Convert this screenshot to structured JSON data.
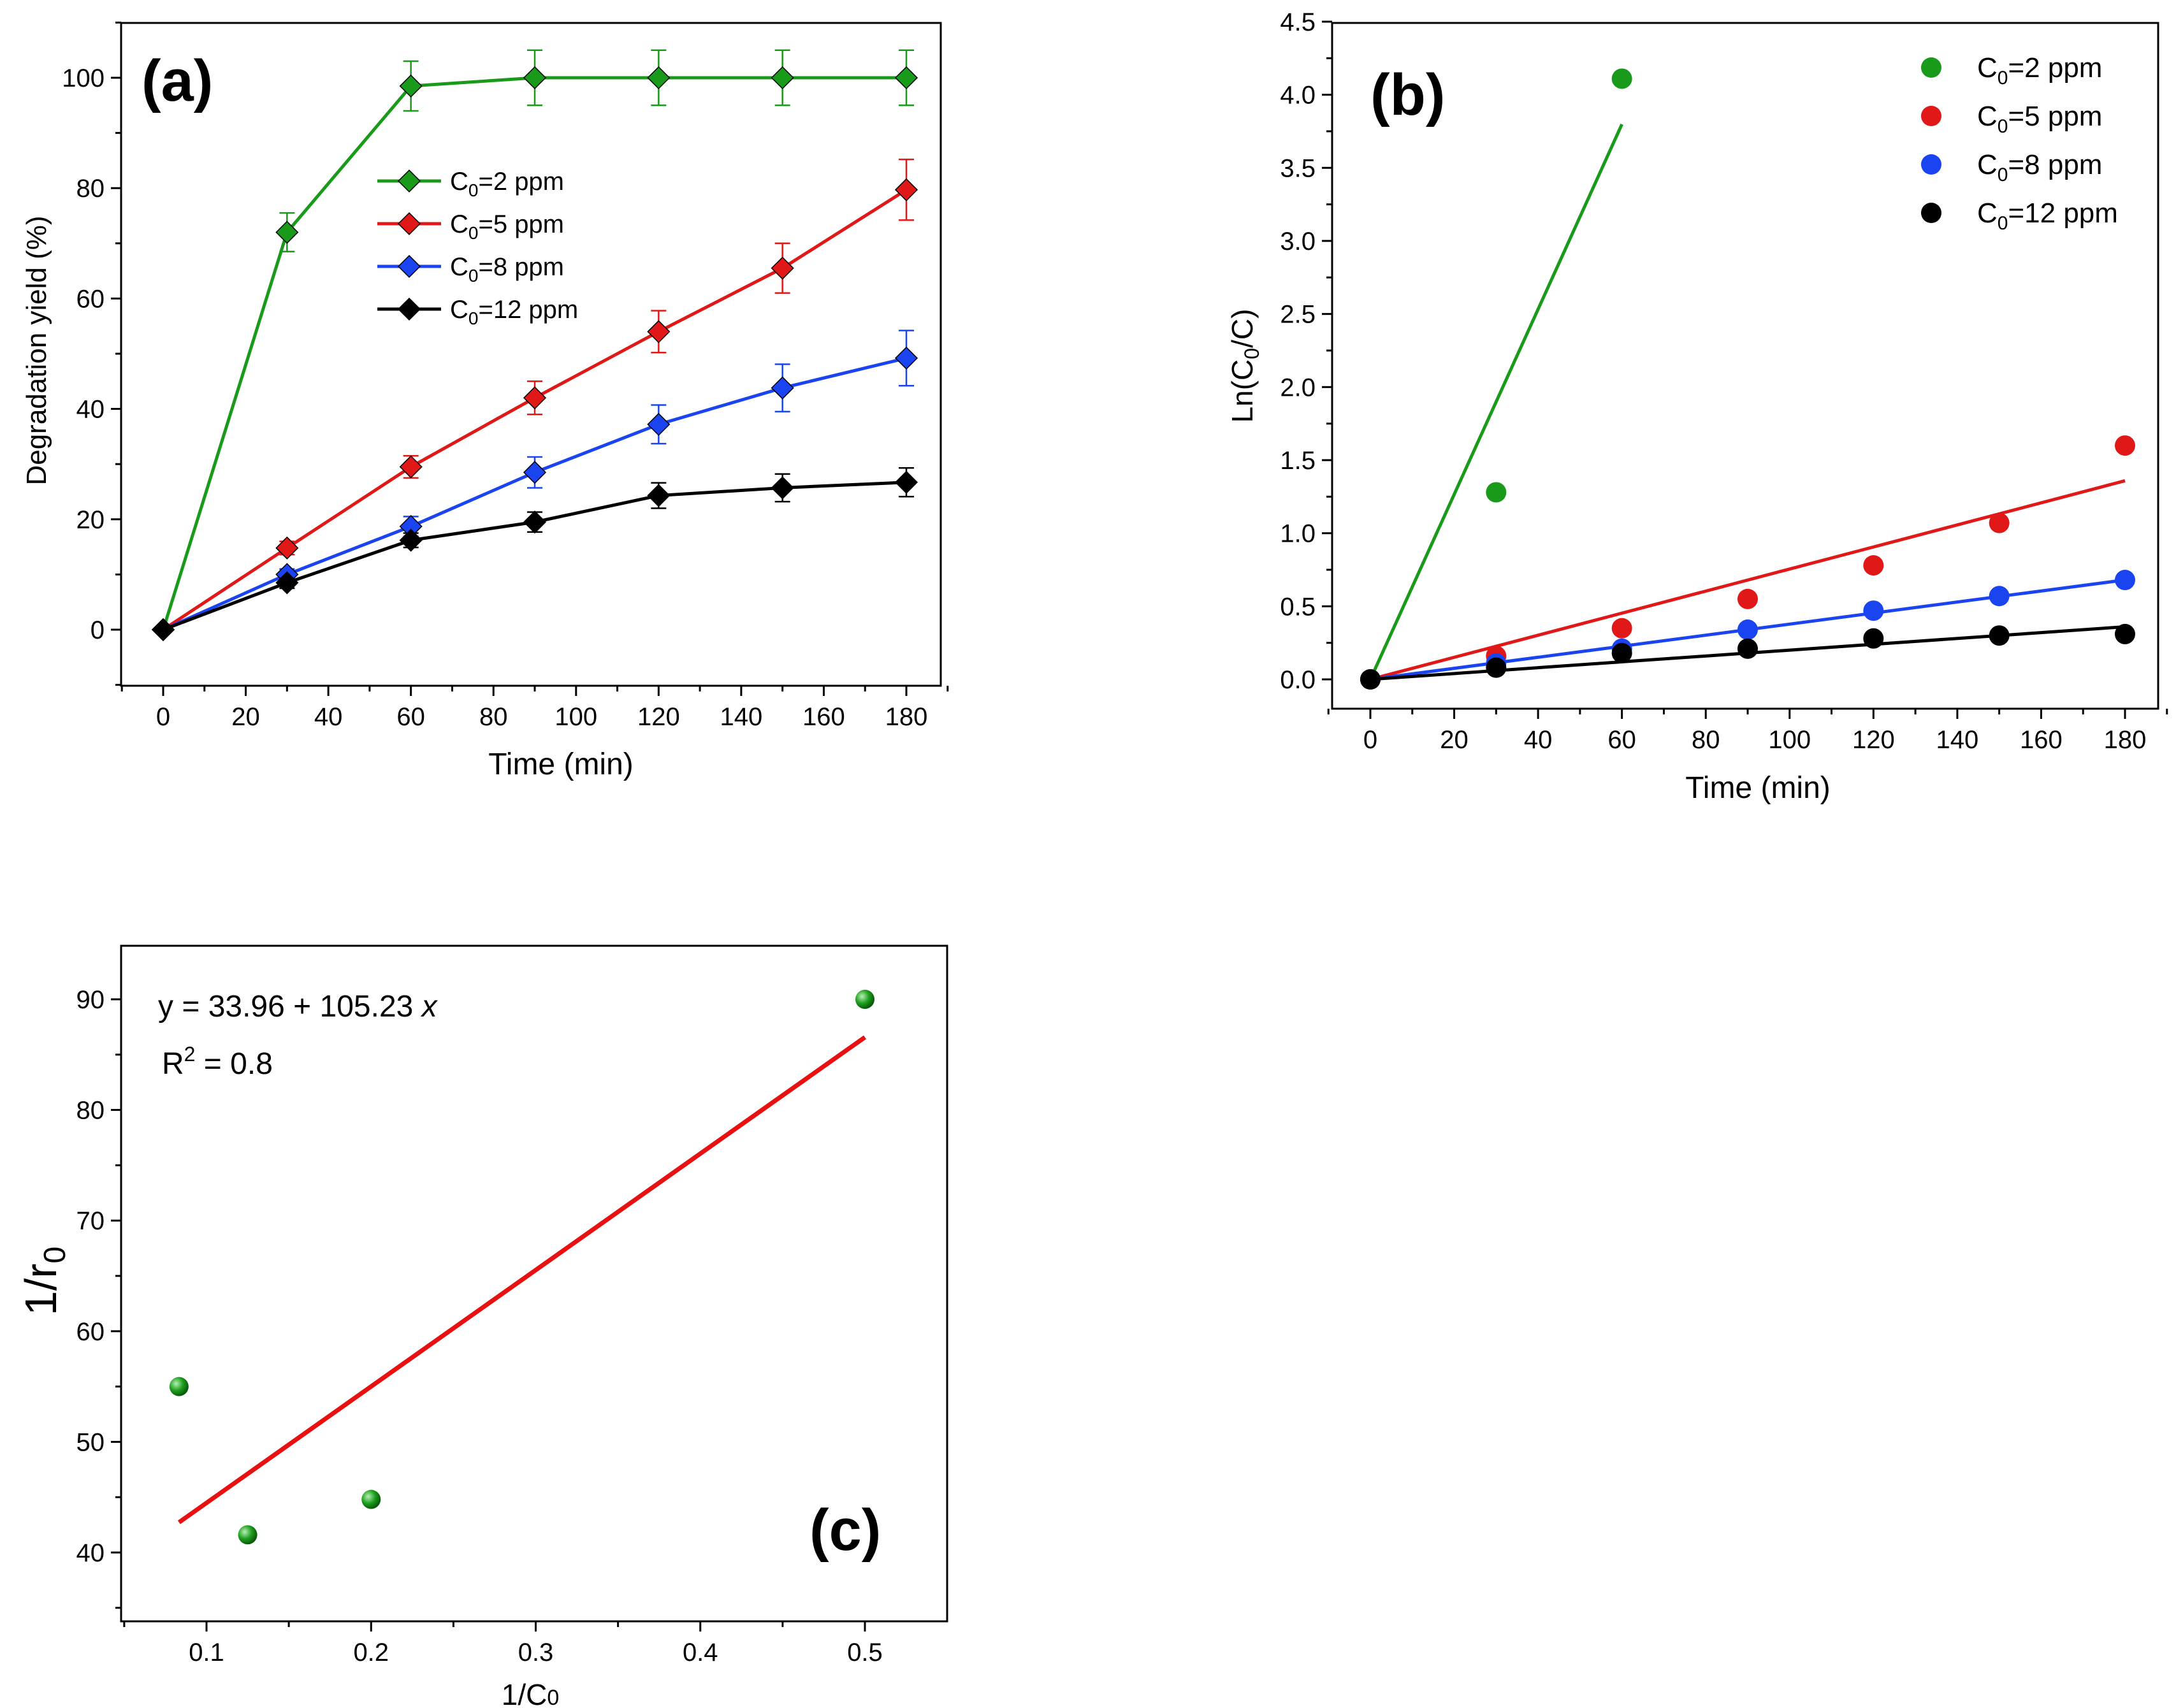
{
  "colors": {
    "green": "#1a9a1a",
    "red": "#e01818",
    "blue": "#1a44f0",
    "black": "#000000",
    "fit_red": "#e81010",
    "point_green": "#22a022"
  },
  "chart_data": [
    {
      "id": "a",
      "type": "line",
      "panel_label": "(a)",
      "xlabel": "Time (min)",
      "ylabel": "Degradation yield (%)",
      "xlim": [
        -10,
        190
      ],
      "ylim": [
        -10,
        110
      ],
      "xticks": [
        "0",
        "20",
        "40",
        "60",
        "80",
        "100",
        "120",
        "140",
        "160",
        "180"
      ],
      "yticks": [
        "0",
        "20",
        "40",
        "60",
        "80",
        "100"
      ],
      "x": [
        0,
        30,
        60,
        90,
        120,
        150,
        180
      ],
      "legend_position": "center-right",
      "series": [
        {
          "name_main": "C",
          "name_sub": "0",
          "name_rest": "=2 ppm",
          "color_key": "green",
          "values": [
            0,
            72,
            98.5,
            100,
            100,
            100,
            100
          ],
          "errors": [
            0,
            3.5,
            4.5,
            5,
            5,
            5,
            5
          ]
        },
        {
          "name_main": "C",
          "name_sub": "0",
          "name_rest": "=5 ppm",
          "color_key": "red",
          "values": [
            0,
            14.8,
            29.5,
            42,
            54,
            65.5,
            79.7
          ],
          "errors": [
            0,
            1.2,
            2,
            3,
            3.8,
            4.5,
            5.5
          ]
        },
        {
          "name_main": "C",
          "name_sub": "0",
          "name_rest": "=8 ppm",
          "color_key": "blue",
          "values": [
            0,
            10,
            18.7,
            28.5,
            37.2,
            43.8,
            49.2
          ],
          "errors": [
            0,
            1,
            1.8,
            2.8,
            3.5,
            4.3,
            5
          ]
        },
        {
          "name_main": "C",
          "name_sub": "0",
          "name_rest": "=12 ppm",
          "color_key": "black",
          "values": [
            0,
            8.5,
            16.2,
            19.5,
            24.3,
            25.7,
            26.7
          ],
          "errors": [
            0,
            1,
            1.3,
            1.8,
            2.3,
            2.5,
            2.6
          ]
        }
      ]
    },
    {
      "id": "b",
      "type": "scatter",
      "panel_label": "(b)",
      "xlabel": "Time (min)",
      "ylabel": "Ln(C0/C)",
      "ylabel_parts": [
        "Ln(C",
        "0",
        "/C)"
      ],
      "xlim": [
        -10,
        190
      ],
      "ylim": [
        -0.2,
        4.5
      ],
      "xticks": [
        "0",
        "20",
        "40",
        "60",
        "80",
        "100",
        "120",
        "140",
        "160",
        "180"
      ],
      "yticks": [
        "0.0",
        "0.5",
        "1.0",
        "1.5",
        "2.0",
        "2.5",
        "3.0",
        "3.5",
        "4.0",
        "4.5"
      ],
      "legend_position": "top-right",
      "series": [
        {
          "name_main": "C",
          "name_sub": "0",
          "name_rest": "=2 ppm",
          "color_key": "green",
          "x": [
            0,
            30,
            60
          ],
          "values": [
            0,
            1.28,
            4.11
          ],
          "fit_slope": 0.0633,
          "fit_x_end": 60
        },
        {
          "name_main": "C",
          "name_sub": "0",
          "name_rest": "=5 ppm",
          "color_key": "red",
          "x": [
            0,
            30,
            60,
            90,
            120,
            150,
            180
          ],
          "values": [
            0,
            0.16,
            0.35,
            0.55,
            0.78,
            1.07,
            1.6
          ],
          "fit_slope": 0.00755,
          "fit_x_end": 180
        },
        {
          "name_main": "C",
          "name_sub": "0",
          "name_rest": "=8 ppm",
          "color_key": "blue",
          "x": [
            0,
            30,
            60,
            90,
            120,
            150,
            180
          ],
          "values": [
            0,
            0.11,
            0.21,
            0.34,
            0.47,
            0.57,
            0.68
          ],
          "fit_slope": 0.00378,
          "fit_x_end": 180
        },
        {
          "name_main": "C",
          "name_sub": "0",
          "name_rest": "=12 ppm",
          "color_key": "black",
          "x": [
            0,
            30,
            60,
            90,
            120,
            150,
            180
          ],
          "values": [
            0,
            0.08,
            0.18,
            0.21,
            0.28,
            0.3,
            0.31
          ],
          "fit_slope": 0.002,
          "fit_x_end": 180
        }
      ]
    },
    {
      "id": "c",
      "type": "scatter",
      "panel_label": "(c)",
      "xlabel": "1/C0",
      "xlabel_parts": [
        "1/C",
        "0"
      ],
      "ylabel": "1/r0",
      "ylabel_parts": [
        "1/r",
        "0"
      ],
      "xlim": [
        0.05,
        0.55
      ],
      "ylim": [
        35,
        95
      ],
      "xticks": [
        "0.1",
        "0.2",
        "0.3",
        "0.4",
        "0.5"
      ],
      "yticks": [
        "40",
        "50",
        "60",
        "70",
        "80",
        "90"
      ],
      "equation": "y = 33.96 + 105.23 x",
      "equation_prefix": "y = 33.96 + 105.23 ",
      "equation_var": "x",
      "r2_main": "R",
      "r2_sup": "2",
      "r2_rest": " = 0.8",
      "series": [
        {
          "name": "points",
          "color_key": "point_green",
          "x": [
            0.0833,
            0.125,
            0.2,
            0.5
          ],
          "values": [
            55,
            41.6,
            44.8,
            90
          ]
        }
      ],
      "fit": {
        "intercept": 33.96,
        "slope": 105.23,
        "x_range": [
          0.0833,
          0.5
        ]
      }
    }
  ]
}
